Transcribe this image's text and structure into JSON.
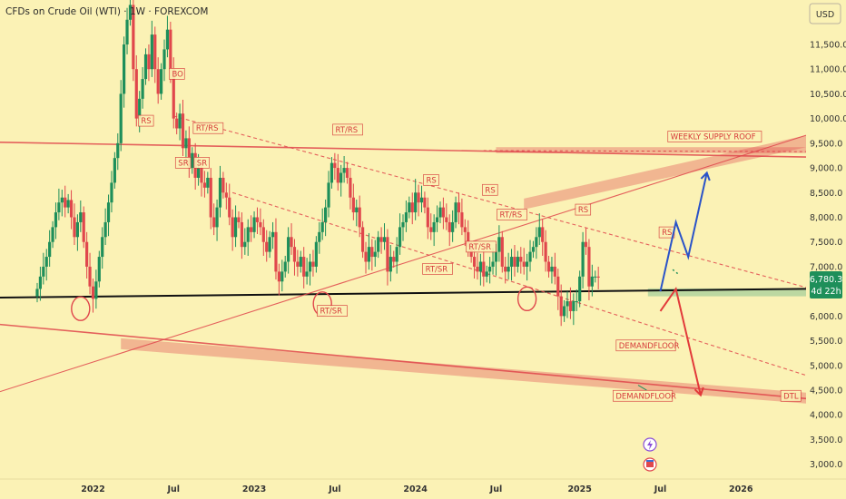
{
  "header": {
    "title": "CFDs on Crude Oil (WTI) · 1W · FOREXCOM"
  },
  "axis": {
    "currency": "USD"
  },
  "price_badge": {
    "price": "6,780.3",
    "countdown": "4d 22h"
  },
  "colors": {
    "bull": "#1e8f5a",
    "bear": "#e0474c",
    "annotation": "#d63a3a",
    "projection_up": "#2a53c8",
    "projection_down": "#e23a3a"
  },
  "chart_data": {
    "type": "candlestick",
    "title": "CFDs on Crude Oil (WTI) · 1W · FOREXCOM",
    "y_axis": {
      "ticks": [
        "3,000.0",
        "3,500.0",
        "4,000.0",
        "4,500.0",
        "5,000.0",
        "5,500.0",
        "6,000.0",
        "6,500.0",
        "7,000.0",
        "7,500.0",
        "8,000.0",
        "8,500.0",
        "9,000.0",
        "9,500.0",
        "10,000.0",
        "10,500.0",
        "11,000.0",
        "11,500.0"
      ],
      "tick_values": [
        3000,
        3500,
        4000,
        4500,
        5000,
        5500,
        6000,
        6500,
        7000,
        7500,
        8000,
        8500,
        9000,
        9500,
        10000,
        10500,
        11000,
        11500
      ],
      "range": [
        2700,
        12400
      ]
    },
    "x_axis": {
      "ticks": [
        "2022",
        "Jul",
        "2023",
        "Jul",
        "2024",
        "Jul",
        "2025",
        "Jul",
        "2026"
      ],
      "tick_dates": [
        "2022-01-03",
        "2022-07-04",
        "2023-01-02",
        "2023-07-03",
        "2024-01-01",
        "2024-07-01",
        "2025-01-06",
        "2025-07-07",
        "2026-01-05"
      ],
      "range": [
        "2021-06-07",
        "2026-06-01"
      ]
    },
    "weekly_closes": [
      6550,
      6800,
      7000,
      7200,
      7500,
      7800,
      8100,
      8300,
      8400,
      8200,
      8350,
      8000,
      7600,
      7900,
      8100,
      7500,
      7000,
      6600,
      6350,
      6700,
      7200,
      7600,
      7900,
      8300,
      8700,
      9200,
      9500,
      10500,
      11500,
      12000,
      12300,
      11000,
      10000,
      10400,
      10800,
      11300,
      11000,
      11700,
      11000,
      10500,
      11000,
      11400,
      11800,
      11000,
      10000,
      9800,
      10100,
      9400,
      9600,
      9000,
      9300,
      8800,
      9000,
      8700,
      8600,
      8800,
      8000,
      7800,
      8200,
      8800,
      8500,
      8400,
      8000,
      7600,
      8000,
      7900,
      7400,
      7500,
      7800,
      7700,
      8000,
      7900,
      7800,
      7500,
      7300,
      7600,
      7700,
      6900,
      6700,
      6900,
      7100,
      7600,
      7400,
      7100,
      7000,
      7200,
      6800,
      6900,
      7100,
      7000,
      7500,
      7700,
      7900,
      8200,
      8700,
      9100,
      9000,
      8700,
      8900,
      9000,
      8800,
      8400,
      8100,
      8200,
      7800,
      7300,
      7100,
      7400,
      7200,
      7300,
      7600,
      7500,
      7600,
      6900,
      7200,
      7100,
      7400,
      7800,
      7900,
      8100,
      8300,
      8100,
      8500,
      8300,
      8400,
      8200,
      7800,
      7700,
      7900,
      8000,
      8200,
      8000,
      7900,
      7700,
      7900,
      8300,
      8100,
      7800,
      7700,
      7400,
      7200,
      7000,
      6900,
      7100,
      6800,
      6900,
      7000,
      7100,
      7300,
      7600,
      7000,
      6900,
      7000,
      7200,
      7000,
      7200,
      7100,
      7000,
      7100,
      7300,
      7400,
      7600,
      7800,
      7500,
      7100,
      6900,
      7000,
      6800,
      6400,
      6000,
      6200,
      6300,
      6100,
      6300,
      6300,
      6800,
      7500,
      7400,
      6600,
      6800,
      6800,
      6780
    ],
    "trendlines": [
      {
        "from": [
          "2021-06-07",
          6375
        ],
        "to": [
          "2026-06-01",
          6550
        ]
      },
      {
        "from": [
          "2021-06-07",
          9520
        ],
        "to": [
          "2026-06-01",
          9220
        ]
      },
      {
        "from": [
          "2021-06-07",
          5830
        ],
        "to": [
          "2026-06-01",
          4330
        ]
      },
      {
        "from": [
          "2021-06-07",
          4470
        ],
        "to": [
          "2026-06-01",
          9660
        ]
      },
      {
        "from": [
          "2022-07-04",
          10050
        ],
        "to": [
          "2026-06-01",
          6580
        ]
      },
      {
        "from": [
          "2022-11-14",
          8500
        ],
        "to": [
          "2026-06-01",
          4800
        ]
      }
    ],
    "zones": [
      {
        "label": "WEEKLY SUPPLY ROOF",
        "y": [
          9300,
          9420
        ]
      },
      {
        "label": "DEMANDFLOOR",
        "y": [
          4520,
          5550
        ]
      }
    ],
    "annotations": [
      "RS",
      "SR",
      "BO",
      "RT/RS",
      "SR",
      "RT/RS",
      "RT/SR",
      "RS",
      "RT/SR",
      "RS",
      "RT/SR",
      "RT/RS",
      "RS",
      "RS",
      "DEMANDFLOOR",
      "DEMANDFLOOR",
      "DTL",
      "DTL",
      "WEEKLY SUPPLY ROOF"
    ],
    "projections": [
      {
        "direction": "up",
        "points": [
          [
            "2025-07-07",
            6500
          ],
          [
            "2025-08-11",
            7900
          ],
          [
            "2025-09-08",
            7200
          ],
          [
            "2025-10-20",
            8900
          ]
        ]
      },
      {
        "direction": "down",
        "points": [
          [
            "2025-07-07",
            6100
          ],
          [
            "2025-08-11",
            6550
          ],
          [
            "2025-10-06",
            4400
          ]
        ]
      }
    ],
    "current_price": 6780.3
  },
  "icons": {
    "flash": "lightning-icon",
    "calendar": "calendar-flag-icon"
  }
}
